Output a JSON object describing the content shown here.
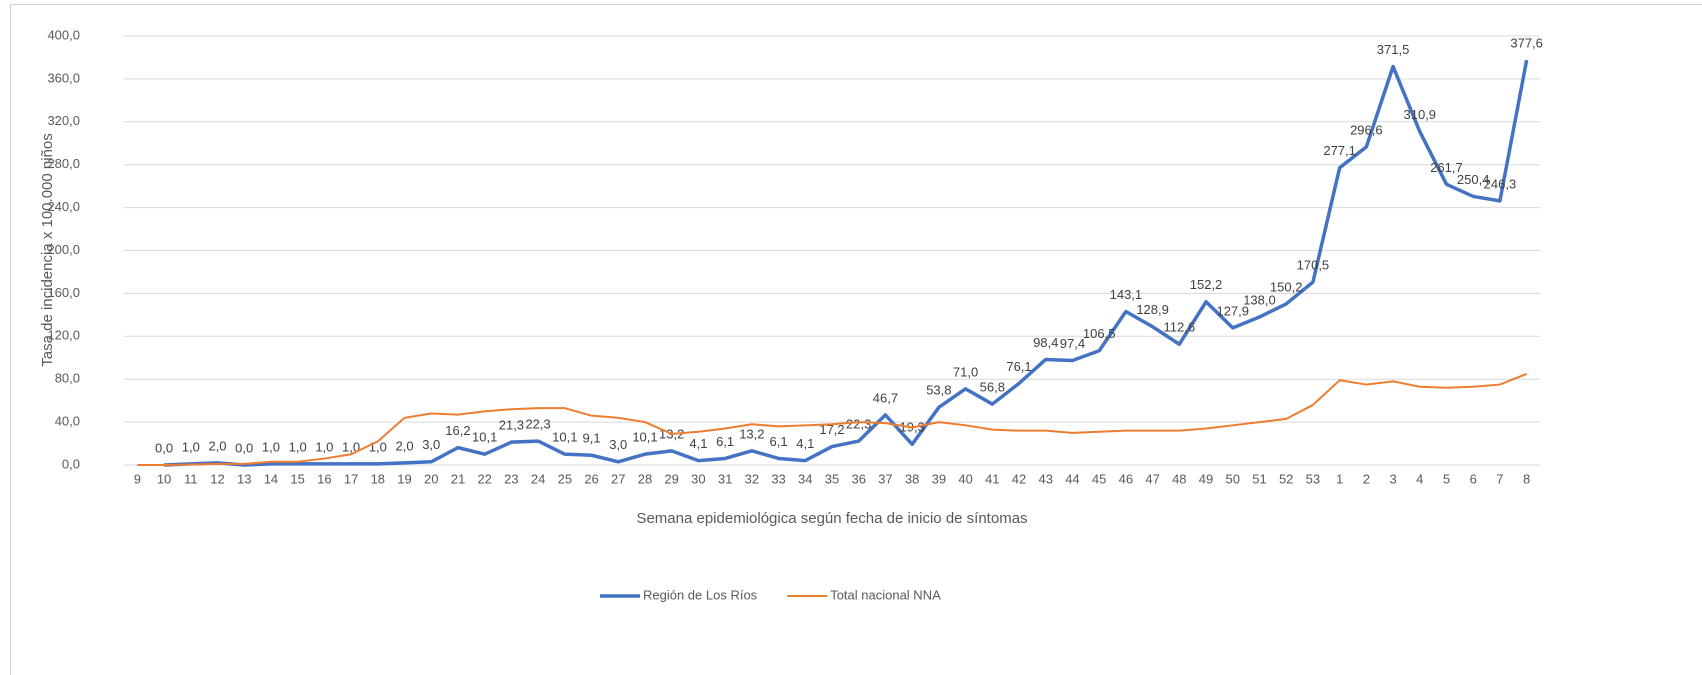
{
  "chart_data": {
    "type": "line",
    "x_label": "Semana epidemiológica según fecha de inicio de síntomas",
    "y_label": "Tasa de incidencia x 100.000 niños",
    "categories": [
      "9",
      "10",
      "11",
      "12",
      "13",
      "14",
      "15",
      "16",
      "17",
      "18",
      "19",
      "20",
      "21",
      "22",
      "23",
      "24",
      "25",
      "26",
      "27",
      "28",
      "29",
      "30",
      "31",
      "32",
      "33",
      "34",
      "35",
      "36",
      "37",
      "38",
      "39",
      "40",
      "41",
      "42",
      "43",
      "44",
      "45",
      "46",
      "47",
      "48",
      "49",
      "50",
      "51",
      "52",
      "53",
      "1",
      "2",
      "3",
      "4",
      "5",
      "6",
      "7",
      "8"
    ],
    "series": [
      {
        "name": "Región de Los Ríos",
        "color": "#4472c4",
        "values": [
          null,
          0,
          1,
          2,
          0,
          1,
          1,
          1,
          1,
          1,
          2,
          3,
          16.2,
          10.1,
          21.3,
          22.3,
          10.1,
          9.1,
          3,
          10.1,
          13.2,
          4.1,
          6.1,
          13.2,
          6.1,
          4.1,
          17.2,
          22.3,
          46.7,
          19.3,
          53.8,
          71,
          56.8,
          76.1,
          98.4,
          97.4,
          106.5,
          143.1,
          128.9,
          112.6,
          152.2,
          127.9,
          138,
          150.2,
          170.5,
          277.1,
          296.6,
          371.5,
          310.9,
          261.7,
          250.4,
          246.3,
          377.6
        ],
        "value_labels": [
          null,
          "0,0",
          "1,0",
          "2,0",
          "0,0",
          "1,0",
          "1,0",
          "1,0",
          "1,0",
          "1,0",
          "2,0",
          "3,0",
          "16,2",
          "10,1",
          "21,3",
          "22,3",
          "10,1",
          "9,1",
          "3,0",
          "10,1",
          "13,2",
          "4,1",
          "6,1",
          "13,2",
          "6,1",
          "4,1",
          "17,2",
          "22,3",
          "46,7",
          "19,3",
          "53,8",
          "71,0",
          "56,8",
          "76,1",
          "98,4",
          "97,4",
          "106,5",
          "143,1",
          "128,9",
          "112,6",
          "152,2",
          "127,9",
          "138,0",
          "150,2",
          "170,5",
          "277,1",
          "296,6",
          "371,5",
          "310,9",
          "261,7",
          "250,4",
          "246,3",
          "377,6"
        ]
      },
      {
        "name": "Total nacional NNA",
        "color": "#ed7d31",
        "values": [
          0,
          0,
          0.5,
          1,
          1,
          3,
          3,
          6,
          10,
          22,
          44,
          48,
          47,
          50,
          52,
          53,
          53,
          46,
          44,
          40,
          29,
          31,
          34,
          38,
          36,
          37,
          38,
          40,
          39,
          35,
          40,
          37,
          33,
          32,
          32,
          30,
          31,
          32,
          32,
          32,
          34,
          37,
          40,
          43,
          56,
          79,
          75,
          78,
          73,
          72,
          73,
          75,
          85
        ]
      }
    ],
    "ylim": [
      0,
      400
    ],
    "yticks": [
      {
        "value": 0,
        "label": "0,0"
      },
      {
        "value": 40,
        "label": "40,0"
      },
      {
        "value": 80,
        "label": "80,0"
      },
      {
        "value": 120,
        "label": "120,0"
      },
      {
        "value": 160,
        "label": "160,0"
      },
      {
        "value": 200,
        "label": "200,0"
      },
      {
        "value": 240,
        "label": "240,0"
      },
      {
        "value": 280,
        "label": "280,0"
      },
      {
        "value": 320,
        "label": "320,0"
      },
      {
        "value": 360,
        "label": "360,0"
      },
      {
        "value": 400,
        "label": "400,0"
      }
    ],
    "grid": true,
    "legend": "bottom"
  }
}
